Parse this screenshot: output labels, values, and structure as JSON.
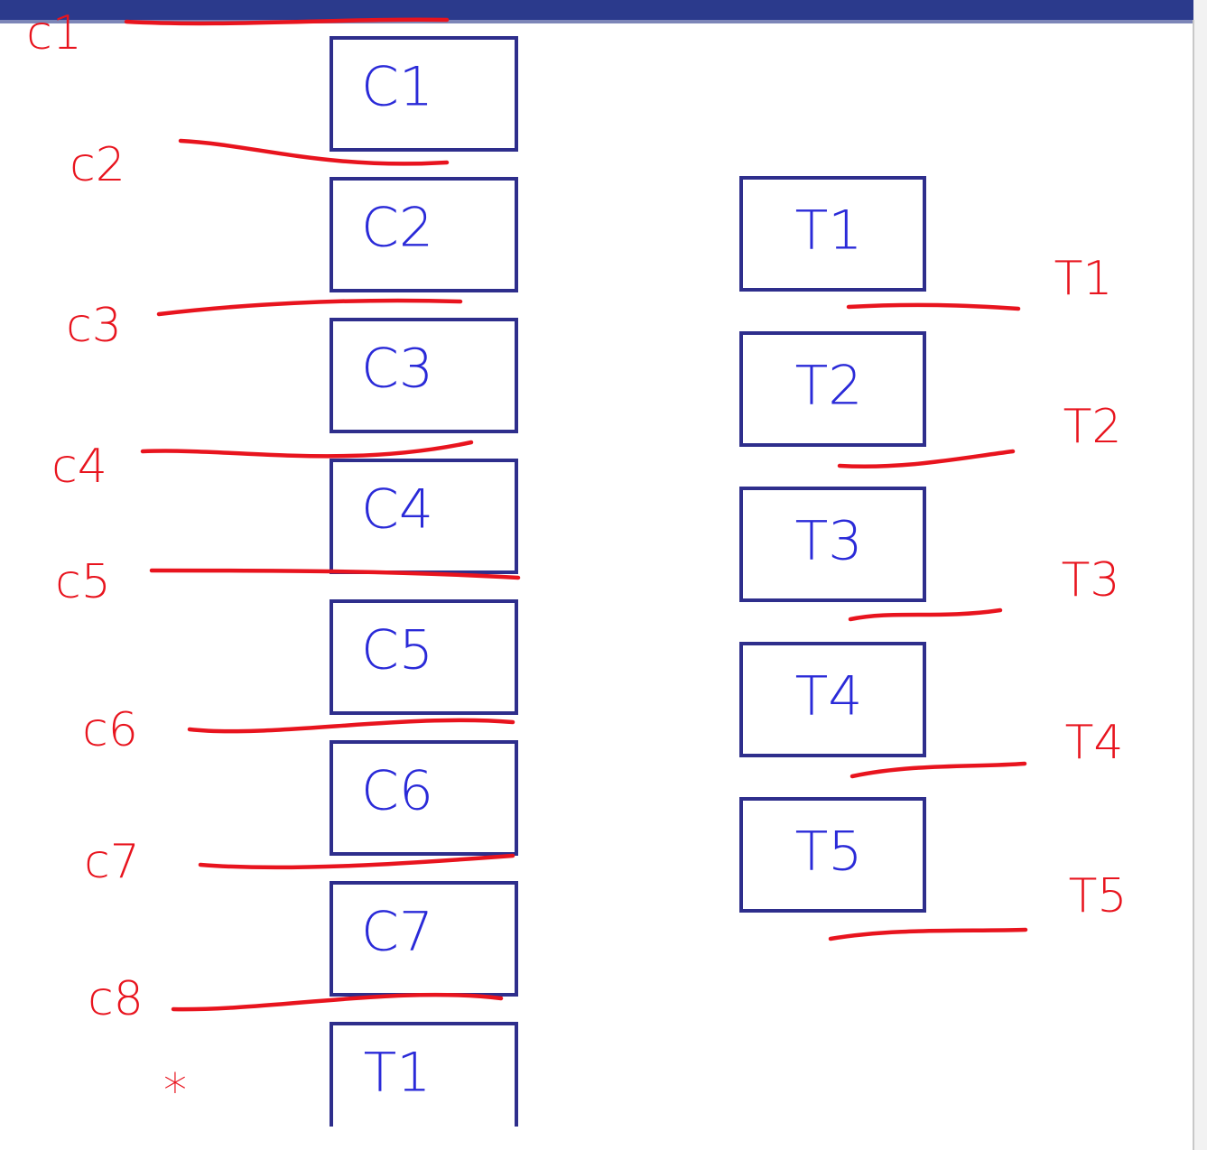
{
  "colors": {
    "box_border": "#2e2e8c",
    "box_text": "#2a2ad8",
    "ink": "#e8141e",
    "top_bar": "#2b3a8c"
  },
  "left_column": {
    "boxes": [
      "C1",
      "C2",
      "C3",
      "C4",
      "C5",
      "C6",
      "C7",
      "T1"
    ]
  },
  "right_column": {
    "boxes": [
      "T1",
      "T2",
      "T3",
      "T4",
      "T5"
    ]
  },
  "annotations": {
    "left_labels": [
      "c1",
      "c2",
      "c3",
      "c4",
      "c5",
      "c6",
      "c7",
      "c8",
      "*"
    ],
    "right_labels": [
      "T1",
      "T2",
      "T3",
      "T4",
      "T5"
    ]
  }
}
